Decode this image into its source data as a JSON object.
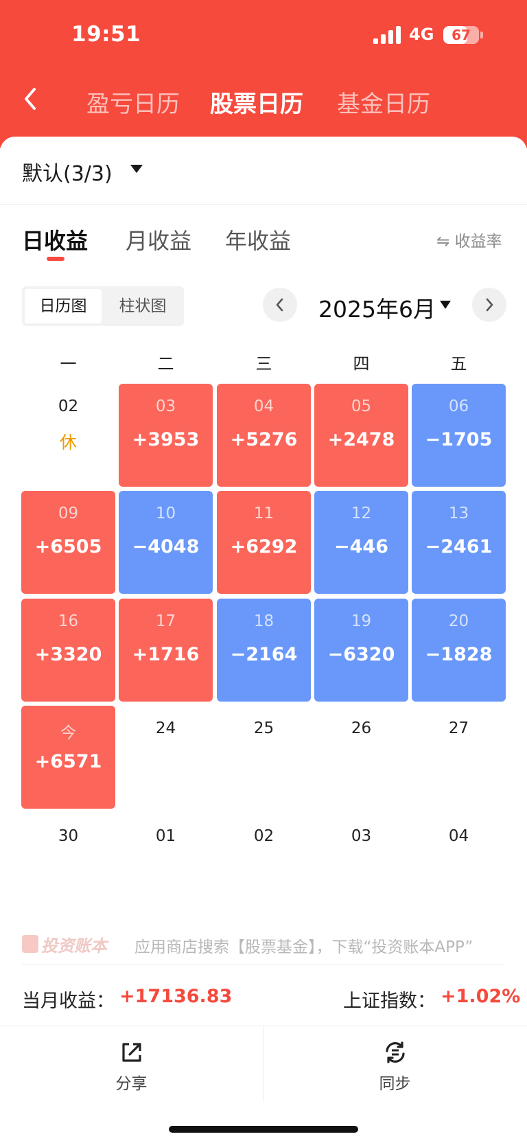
{
  "status_bar": {
    "time": "19:51",
    "network": "4G",
    "battery": "67"
  },
  "top_tabs": [
    {
      "label": "盈亏日历",
      "active": false
    },
    {
      "label": "股票日历",
      "active": true
    },
    {
      "label": "基金日历",
      "active": false
    }
  ],
  "account": {
    "label": "默认(3/3)"
  },
  "period_tabs": [
    {
      "label": "日收益",
      "active": true
    },
    {
      "label": "月收益",
      "active": false
    },
    {
      "label": "年收益",
      "active": false
    }
  ],
  "rate_toggle": "⇋ 收益率",
  "view_toggle": [
    {
      "label": "日历图",
      "active": true
    },
    {
      "label": "柱状图",
      "active": false
    }
  ],
  "month_selector": {
    "label": "2025年6月"
  },
  "weekdays": [
    "一",
    "二",
    "三",
    "四",
    "五"
  ],
  "calendar": {
    "rows": [
      [
        {
          "date": "02",
          "value": "",
          "rest": "休",
          "state": "rest"
        },
        {
          "date": "03",
          "value": "+3953",
          "state": "up"
        },
        {
          "date": "04",
          "value": "+5276",
          "state": "up"
        },
        {
          "date": "05",
          "value": "+2478",
          "state": "up"
        },
        {
          "date": "06",
          "value": "−1705",
          "state": "down"
        }
      ],
      [
        {
          "date": "09",
          "value": "+6505",
          "state": "up"
        },
        {
          "date": "10",
          "value": "−4048",
          "state": "down"
        },
        {
          "date": "11",
          "value": "+6292",
          "state": "up"
        },
        {
          "date": "12",
          "value": "−446",
          "state": "down"
        },
        {
          "date": "13",
          "value": "−2461",
          "state": "down"
        }
      ],
      [
        {
          "date": "16",
          "value": "+3320",
          "state": "up"
        },
        {
          "date": "17",
          "value": "+1716",
          "state": "up"
        },
        {
          "date": "18",
          "value": "−2164",
          "state": "down"
        },
        {
          "date": "19",
          "value": "−6320",
          "state": "down"
        },
        {
          "date": "20",
          "value": "−1828",
          "state": "down"
        }
      ],
      [
        {
          "date": "今",
          "value": "+6571",
          "state": "up"
        },
        {
          "date": "24",
          "value": "",
          "state": "none"
        },
        {
          "date": "25",
          "value": "",
          "state": "none"
        },
        {
          "date": "26",
          "value": "",
          "state": "none"
        },
        {
          "date": "27",
          "value": "",
          "state": "none"
        }
      ],
      [
        {
          "date": "30",
          "value": "",
          "state": "none"
        },
        {
          "date": "01",
          "value": "",
          "state": "none"
        },
        {
          "date": "02",
          "value": "",
          "state": "none"
        },
        {
          "date": "03",
          "value": "",
          "state": "none"
        },
        {
          "date": "04",
          "value": "",
          "state": "none"
        }
      ]
    ]
  },
  "footer": {
    "logo_text": "投资账本",
    "ad_text": "应用商店搜索【股票基金】，下载“投资账本APP”"
  },
  "summary": {
    "month_label": "当月收益：",
    "month_value": "+17136.83",
    "index_label": "上证指数：",
    "index_value": "+1.02%"
  },
  "actions": {
    "share": "分享",
    "sync": "同步"
  },
  "colors": {
    "brand": "#f64a3d",
    "gain": "#fb655a",
    "loss": "#6998fa",
    "rest": "#f09a00"
  }
}
